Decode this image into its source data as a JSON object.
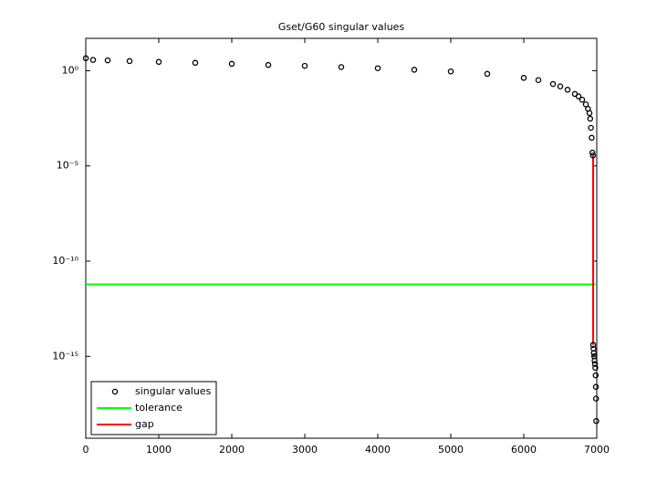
{
  "chart_data": {
    "type": "scatter",
    "title": "Gset/G60 singular values",
    "xlim": [
      0,
      7000
    ],
    "ylim": [
      5e-20,
      50
    ],
    "log_y": true,
    "xticks": [
      0,
      1000,
      2000,
      3000,
      4000,
      5000,
      6000,
      7000
    ],
    "yticks": [
      {
        "value": 1,
        "label": "10⁰"
      },
      {
        "value": 1e-05,
        "label": "10⁻⁵"
      },
      {
        "value": 1e-10,
        "label": "10⁻¹⁰"
      },
      {
        "value": 1e-15,
        "label": "10⁻¹⁵"
      }
    ],
    "legend": "lower left",
    "series": [
      {
        "name": "singular values",
        "color": "#000000",
        "mode": "markers",
        "x": [
          1,
          100,
          300,
          600,
          1000,
          1500,
          2000,
          2500,
          3000,
          3500,
          4000,
          4500,
          5000,
          5500,
          6000,
          6200,
          6400,
          6500,
          6600,
          6700,
          6750,
          6800,
          6850,
          6880,
          6900,
          6910,
          6920,
          6930,
          6940,
          6948,
          6950,
          6955,
          6960,
          6965,
          6970,
          6975,
          6980,
          6985,
          6988,
          6990,
          6993
        ],
        "values": [
          4.5,
          3.7,
          3.5,
          3.2,
          2.9,
          2.6,
          2.3,
          2.0,
          1.8,
          1.55,
          1.35,
          1.12,
          0.92,
          0.68,
          0.42,
          0.32,
          0.2,
          0.15,
          0.1,
          0.06,
          0.045,
          0.03,
          0.017,
          0.01,
          0.006,
          0.003,
          0.001,
          0.0003,
          5e-05,
          3.5e-05,
          4e-15,
          2.5e-15,
          1.5e-15,
          1e-15,
          6e-16,
          4e-16,
          2.5e-16,
          1e-16,
          2.5e-17,
          6e-18,
          4e-19
        ]
      },
      {
        "name": "tolerance",
        "color": "#00ff00",
        "mode": "line",
        "x": [
          0,
          6980
        ],
        "values": [
          6e-12,
          6e-12
        ]
      },
      {
        "name": "gap",
        "color": "#ff0000",
        "mode": "line",
        "x": [
          6950,
          6950
        ],
        "values": [
          3.5e-05,
          4e-15
        ]
      }
    ]
  }
}
